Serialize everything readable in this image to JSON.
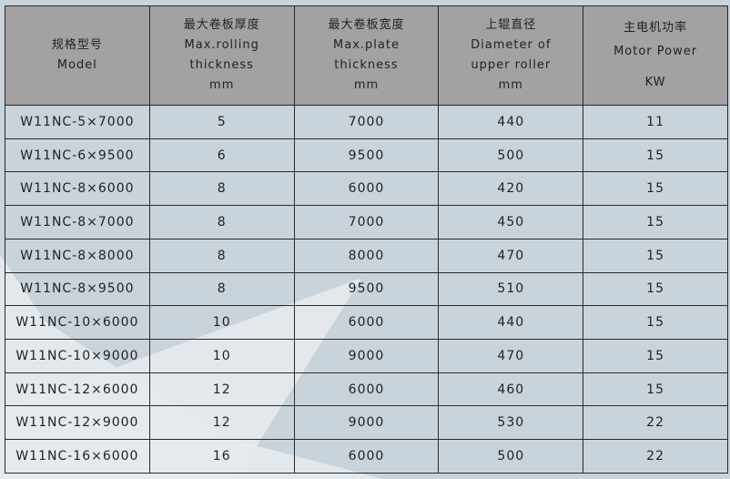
{
  "headers": [
    {
      "cn": "规格型号",
      "en": [
        "Model"
      ]
    },
    {
      "cn": "最大卷板厚度",
      "en": [
        "Max.rolling",
        "thickness",
        "mm"
      ]
    },
    {
      "cn": "最大卷板宽度",
      "en": [
        "Max.plate",
        "thickness",
        "mm"
      ]
    },
    {
      "cn": "上辊直径",
      "en": [
        "Diameter of",
        "upper roller",
        "mm"
      ]
    },
    {
      "cn": "主电机功率",
      "en": [
        "Motor Power",
        "KW"
      ]
    }
  ],
  "rows": [
    [
      "W11NC-5×7000",
      "5",
      "7000",
      "440",
      "11"
    ],
    [
      "W11NC-6×9500",
      "6",
      "9500",
      "500",
      "15"
    ],
    [
      "W11NC-8×6000",
      "8",
      "6000",
      "420",
      "15"
    ],
    [
      "W11NC-8×7000",
      "8",
      "7000",
      "450",
      "15"
    ],
    [
      "W11NC-8×8000",
      "8",
      "8000",
      "470",
      "15"
    ],
    [
      "W11NC-8×9500",
      "8",
      "9500",
      "510",
      "15"
    ],
    [
      "W11NC-10×6000",
      "10",
      "6000",
      "440",
      "15"
    ],
    [
      "W11NC-10×9000",
      "10",
      "9000",
      "470",
      "15"
    ],
    [
      "W11NC-12×6000",
      "12",
      "6000",
      "460",
      "15"
    ],
    [
      "W11NC-12×9000",
      "12",
      "9000",
      "530",
      "22"
    ],
    [
      "W11NC-16×6000",
      "16",
      "6000",
      "500",
      "22"
    ]
  ]
}
